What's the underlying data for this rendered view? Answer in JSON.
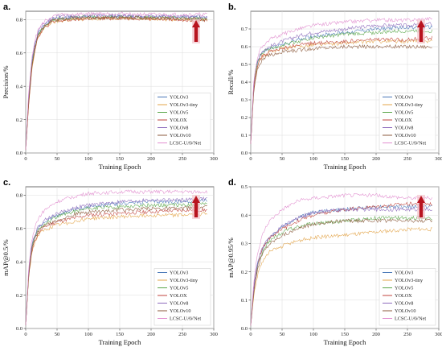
{
  "chart_data": [
    {
      "panel": "a.",
      "type": "line",
      "xlabel": "Training Epoch",
      "ylabel": "Precision/%",
      "xlim": [
        0,
        300
      ],
      "ylim": [
        0,
        0.85
      ],
      "x_ticks": [
        "0",
        "50",
        "100",
        "150",
        "200",
        "250",
        "300"
      ],
      "y_ticks": [
        "0.0",
        "0.2",
        "0.4",
        "0.6",
        "0.8"
      ],
      "grid": true,
      "legend_position": "bottom-right",
      "annotation": "up-arrow",
      "series": [
        {
          "name": "YOLOv3",
          "color": "#4a78b8",
          "x": [
            0,
            5,
            10,
            15,
            20,
            30,
            40,
            50,
            75,
            100,
            150,
            200,
            250,
            290
          ],
          "values": [
            0.02,
            0.35,
            0.55,
            0.65,
            0.72,
            0.77,
            0.8,
            0.81,
            0.815,
            0.82,
            0.82,
            0.82,
            0.815,
            0.81
          ]
        },
        {
          "name": "YOLOv3-tiny",
          "color": "#e3a44a",
          "x": [
            0,
            5,
            10,
            15,
            20,
            30,
            40,
            50,
            75,
            100,
            150,
            200,
            250,
            290
          ],
          "values": [
            0.02,
            0.3,
            0.5,
            0.62,
            0.7,
            0.75,
            0.78,
            0.79,
            0.8,
            0.805,
            0.81,
            0.805,
            0.8,
            0.8
          ]
        },
        {
          "name": "YOLOv5",
          "color": "#5aa64a",
          "x": [
            0,
            5,
            10,
            15,
            20,
            30,
            40,
            50,
            75,
            100,
            150,
            200,
            250,
            290
          ],
          "values": [
            0.02,
            0.33,
            0.54,
            0.64,
            0.71,
            0.76,
            0.79,
            0.8,
            0.81,
            0.815,
            0.815,
            0.81,
            0.81,
            0.805
          ]
        },
        {
          "name": "YOLOX",
          "color": "#c0433c",
          "x": [
            0,
            5,
            10,
            15,
            20,
            30,
            40,
            50,
            75,
            100,
            150,
            200,
            250,
            290
          ],
          "values": [
            0.02,
            0.31,
            0.52,
            0.63,
            0.7,
            0.75,
            0.78,
            0.79,
            0.8,
            0.805,
            0.81,
            0.805,
            0.8,
            0.795
          ]
        },
        {
          "name": "YOLOv8",
          "color": "#8e6bbd",
          "x": [
            0,
            5,
            10,
            15,
            20,
            30,
            40,
            50,
            75,
            100,
            150,
            200,
            250,
            290
          ],
          "values": [
            0.02,
            0.36,
            0.56,
            0.66,
            0.73,
            0.78,
            0.8,
            0.82,
            0.82,
            0.825,
            0.825,
            0.82,
            0.82,
            0.815
          ]
        },
        {
          "name": "YOLOv10",
          "color": "#8b5a3c",
          "x": [
            0,
            5,
            10,
            15,
            20,
            30,
            40,
            50,
            75,
            100,
            150,
            200,
            250,
            290
          ],
          "values": [
            0.02,
            0.32,
            0.53,
            0.64,
            0.71,
            0.76,
            0.79,
            0.8,
            0.81,
            0.81,
            0.815,
            0.81,
            0.805,
            0.8
          ]
        },
        {
          "name": "LCSC-UAVNet",
          "color": "#e28fd0",
          "x": [
            0,
            5,
            10,
            15,
            20,
            30,
            40,
            50,
            75,
            100,
            150,
            200,
            250,
            290
          ],
          "values": [
            0.02,
            0.38,
            0.58,
            0.68,
            0.74,
            0.79,
            0.81,
            0.83,
            0.83,
            0.835,
            0.835,
            0.83,
            0.83,
            0.83
          ]
        }
      ]
    },
    {
      "panel": "b.",
      "type": "line",
      "xlabel": "Training Epoch",
      "ylabel": "Recall/%",
      "xlim": [
        0,
        300
      ],
      "ylim": [
        0,
        0.8
      ],
      "x_ticks": [
        "0",
        "50",
        "100",
        "150",
        "200",
        "250",
        "300"
      ],
      "y_ticks": [
        "0.0",
        "0.1",
        "0.2",
        "0.3",
        "0.4",
        "0.5",
        "0.6",
        "0.7"
      ],
      "grid": true,
      "legend_position": "bottom-right",
      "annotation": "up-arrow",
      "series": [
        {
          "name": "YOLOv3",
          "color": "#4a78b8",
          "x": [
            0,
            5,
            10,
            15,
            20,
            30,
            50,
            75,
            100,
            150,
            200,
            250,
            290
          ],
          "values": [
            0.05,
            0.4,
            0.5,
            0.55,
            0.57,
            0.59,
            0.61,
            0.64,
            0.66,
            0.68,
            0.7,
            0.71,
            0.71
          ]
        },
        {
          "name": "YOLOv3-tiny",
          "color": "#e3a44a",
          "x": [
            0,
            5,
            10,
            15,
            20,
            30,
            50,
            75,
            100,
            150,
            200,
            250,
            290
          ],
          "values": [
            0.05,
            0.38,
            0.48,
            0.53,
            0.55,
            0.57,
            0.59,
            0.6,
            0.61,
            0.62,
            0.63,
            0.63,
            0.63
          ]
        },
        {
          "name": "YOLOv5",
          "color": "#5aa64a",
          "x": [
            0,
            5,
            10,
            15,
            20,
            30,
            50,
            75,
            100,
            150,
            200,
            250,
            290
          ],
          "values": [
            0.05,
            0.4,
            0.5,
            0.55,
            0.57,
            0.59,
            0.61,
            0.63,
            0.65,
            0.67,
            0.68,
            0.69,
            0.69
          ]
        },
        {
          "name": "YOLOX",
          "color": "#c0433c",
          "x": [
            0,
            5,
            10,
            15,
            20,
            30,
            50,
            75,
            100,
            150,
            200,
            250,
            290
          ],
          "values": [
            0.05,
            0.38,
            0.48,
            0.53,
            0.55,
            0.57,
            0.59,
            0.61,
            0.62,
            0.63,
            0.64,
            0.64,
            0.65
          ]
        },
        {
          "name": "YOLOv8",
          "color": "#8e6bbd",
          "x": [
            0,
            5,
            10,
            15,
            20,
            30,
            50,
            75,
            100,
            150,
            200,
            250,
            290
          ],
          "values": [
            0.05,
            0.41,
            0.51,
            0.56,
            0.58,
            0.6,
            0.63,
            0.66,
            0.68,
            0.7,
            0.72,
            0.72,
            0.73
          ]
        },
        {
          "name": "YOLOv10",
          "color": "#8b5a3c",
          "x": [
            0,
            5,
            10,
            15,
            20,
            30,
            50,
            75,
            100,
            150,
            200,
            250,
            290
          ],
          "values": [
            0.05,
            0.36,
            0.46,
            0.51,
            0.53,
            0.55,
            0.57,
            0.58,
            0.59,
            0.6,
            0.6,
            0.6,
            0.6
          ]
        },
        {
          "name": "LCSC-UAVNet",
          "color": "#e28fd0",
          "x": [
            0,
            5,
            10,
            15,
            20,
            30,
            50,
            75,
            100,
            150,
            200,
            250,
            290
          ],
          "values": [
            0.05,
            0.42,
            0.53,
            0.58,
            0.61,
            0.64,
            0.67,
            0.7,
            0.72,
            0.74,
            0.75,
            0.75,
            0.76
          ]
        }
      ]
    },
    {
      "panel": "c.",
      "type": "line",
      "xlabel": "Training Epoch",
      "ylabel": "mAP@0.5/%",
      "xlim": [
        0,
        300
      ],
      "ylim": [
        0,
        0.85
      ],
      "x_ticks": [
        "0",
        "50",
        "100",
        "150",
        "200",
        "250",
        "300"
      ],
      "y_ticks": [
        "0.0",
        "0.2",
        "0.4",
        "0.6",
        "0.8"
      ],
      "grid": true,
      "legend_position": "bottom-right",
      "annotation": "up-arrow",
      "series": [
        {
          "name": "YOLOv3",
          "color": "#4a78b8",
          "x": [
            0,
            5,
            10,
            15,
            20,
            30,
            50,
            75,
            100,
            150,
            200,
            250,
            290
          ],
          "values": [
            0.02,
            0.35,
            0.5,
            0.56,
            0.6,
            0.64,
            0.68,
            0.71,
            0.73,
            0.75,
            0.76,
            0.76,
            0.77
          ]
        },
        {
          "name": "YOLOv3-tiny",
          "color": "#e3a44a",
          "x": [
            0,
            5,
            10,
            15,
            20,
            30,
            50,
            75,
            100,
            150,
            200,
            250,
            290
          ],
          "values": [
            0.02,
            0.32,
            0.46,
            0.52,
            0.56,
            0.59,
            0.62,
            0.64,
            0.66,
            0.67,
            0.68,
            0.68,
            0.69
          ]
        },
        {
          "name": "YOLOv5",
          "color": "#5aa64a",
          "x": [
            0,
            5,
            10,
            15,
            20,
            30,
            50,
            75,
            100,
            150,
            200,
            250,
            290
          ],
          "values": [
            0.02,
            0.34,
            0.49,
            0.55,
            0.59,
            0.63,
            0.67,
            0.7,
            0.72,
            0.73,
            0.74,
            0.74,
            0.75
          ]
        },
        {
          "name": "YOLOX",
          "color": "#c0433c",
          "x": [
            0,
            5,
            10,
            15,
            20,
            30,
            50,
            75,
            100,
            150,
            200,
            250,
            290
          ],
          "values": [
            0.02,
            0.33,
            0.47,
            0.53,
            0.57,
            0.61,
            0.64,
            0.66,
            0.68,
            0.69,
            0.7,
            0.71,
            0.71
          ]
        },
        {
          "name": "YOLOv8",
          "color": "#8e6bbd",
          "x": [
            0,
            5,
            10,
            15,
            20,
            30,
            50,
            75,
            100,
            150,
            200,
            250,
            290
          ],
          "values": [
            0.02,
            0.36,
            0.51,
            0.57,
            0.61,
            0.65,
            0.69,
            0.72,
            0.74,
            0.76,
            0.77,
            0.77,
            0.78
          ]
        },
        {
          "name": "YOLOv10",
          "color": "#8b5a3c",
          "x": [
            0,
            5,
            10,
            15,
            20,
            30,
            50,
            75,
            100,
            150,
            200,
            250,
            290
          ],
          "values": [
            0.02,
            0.33,
            0.48,
            0.54,
            0.58,
            0.62,
            0.65,
            0.68,
            0.7,
            0.71,
            0.72,
            0.72,
            0.73
          ]
        },
        {
          "name": "LCSC-UAVNet",
          "color": "#e28fd0",
          "x": [
            0,
            5,
            10,
            15,
            20,
            30,
            50,
            75,
            100,
            150,
            200,
            250,
            290
          ],
          "values": [
            0.02,
            0.38,
            0.54,
            0.61,
            0.66,
            0.71,
            0.76,
            0.79,
            0.81,
            0.82,
            0.82,
            0.82,
            0.82
          ]
        }
      ]
    },
    {
      "panel": "d.",
      "type": "line",
      "xlabel": "Training Epoch",
      "ylabel": "mAP@0.95/%",
      "xlim": [
        0,
        300
      ],
      "ylim": [
        0,
        0.5
      ],
      "x_ticks": [
        "0",
        "50",
        "100",
        "150",
        "200",
        "250",
        "300"
      ],
      "y_ticks": [
        "0.0",
        "0.1",
        "0.2",
        "0.3",
        "0.4",
        "0.5"
      ],
      "grid": true,
      "legend_position": "bottom-right",
      "annotation": "up-arrow",
      "series": [
        {
          "name": "YOLOv3",
          "color": "#4a78b8",
          "x": [
            0,
            5,
            10,
            15,
            20,
            30,
            50,
            75,
            100,
            150,
            200,
            250,
            290
          ],
          "values": [
            0.01,
            0.15,
            0.22,
            0.26,
            0.29,
            0.32,
            0.36,
            0.39,
            0.41,
            0.42,
            0.43,
            0.43,
            0.43
          ]
        },
        {
          "name": "YOLOv3-tiny",
          "color": "#e3a44a",
          "x": [
            0,
            5,
            10,
            15,
            20,
            30,
            50,
            75,
            100,
            150,
            200,
            250,
            290
          ],
          "values": [
            0.01,
            0.12,
            0.18,
            0.22,
            0.24,
            0.27,
            0.29,
            0.31,
            0.32,
            0.33,
            0.34,
            0.35,
            0.35
          ]
        },
        {
          "name": "YOLOv5",
          "color": "#5aa64a",
          "x": [
            0,
            5,
            10,
            15,
            20,
            30,
            50,
            75,
            100,
            150,
            200,
            250,
            290
          ],
          "values": [
            0.01,
            0.14,
            0.21,
            0.25,
            0.28,
            0.31,
            0.34,
            0.36,
            0.37,
            0.38,
            0.39,
            0.39,
            0.39
          ]
        },
        {
          "name": "YOLOX",
          "color": "#c0433c",
          "x": [
            0,
            5,
            10,
            15,
            20,
            30,
            50,
            75,
            100,
            150,
            200,
            250,
            290
          ],
          "values": [
            0.01,
            0.14,
            0.21,
            0.26,
            0.29,
            0.32,
            0.35,
            0.38,
            0.4,
            0.42,
            0.43,
            0.44,
            0.44
          ]
        },
        {
          "name": "YOLOv8",
          "color": "#8e6bbd",
          "x": [
            0,
            5,
            10,
            15,
            20,
            30,
            50,
            75,
            100,
            150,
            200,
            250,
            290
          ],
          "values": [
            0.01,
            0.15,
            0.22,
            0.26,
            0.29,
            0.32,
            0.36,
            0.39,
            0.41,
            0.42,
            0.42,
            0.42,
            0.42
          ]
        },
        {
          "name": "YOLOv10",
          "color": "#8b5a3c",
          "x": [
            0,
            5,
            10,
            15,
            20,
            30,
            50,
            75,
            100,
            150,
            200,
            250,
            290
          ],
          "values": [
            0.01,
            0.13,
            0.2,
            0.24,
            0.27,
            0.3,
            0.33,
            0.35,
            0.37,
            0.38,
            0.38,
            0.38,
            0.38
          ]
        },
        {
          "name": "LCSC-UAVNet",
          "color": "#e28fd0",
          "x": [
            0,
            5,
            10,
            15,
            20,
            30,
            50,
            75,
            100,
            150,
            200,
            250,
            290
          ],
          "values": [
            0.01,
            0.17,
            0.25,
            0.3,
            0.34,
            0.38,
            0.42,
            0.45,
            0.46,
            0.47,
            0.47,
            0.46,
            0.46
          ]
        }
      ]
    }
  ]
}
